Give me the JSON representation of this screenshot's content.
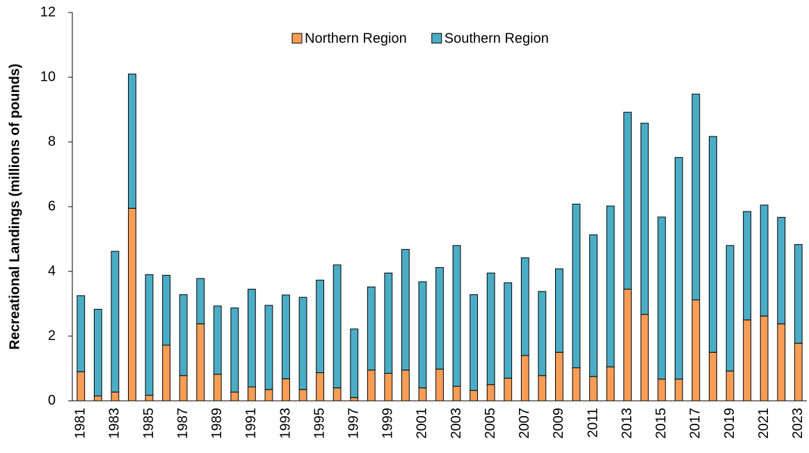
{
  "chart_data": {
    "type": "stacked_bar",
    "y_label": "Recreational Landings (millions of pounds)",
    "categories": [
      "1981",
      null,
      "1983",
      null,
      "1985",
      null,
      "1987",
      null,
      "1989",
      null,
      "1991",
      null,
      "1993",
      null,
      "1995",
      null,
      "1997",
      null,
      "1999",
      null,
      "2001",
      null,
      "2003",
      null,
      "2005",
      null,
      "2007",
      null,
      "2009",
      null,
      "2011",
      null,
      "2013",
      null,
      "2015",
      null,
      "2017",
      null,
      "2019",
      null,
      "2021",
      null,
      "2023"
    ],
    "series": [
      {
        "name": "Northern Region",
        "color": "#f79d56",
        "values": [
          0.9,
          0.15,
          0.27,
          5.95,
          0.17,
          1.72,
          0.78,
          2.38,
          0.82,
          0.27,
          0.43,
          0.35,
          0.68,
          0.35,
          0.87,
          0.4,
          0.1,
          0.95,
          0.85,
          0.95,
          0.4,
          0.98,
          0.45,
          0.32,
          0.5,
          0.7,
          1.4,
          0.78,
          1.5,
          1.02,
          0.75,
          1.05,
          3.45,
          2.67,
          0.67,
          0.67,
          3.12,
          1.5,
          0.92,
          2.5,
          2.62,
          2.38,
          1.78
        ]
      },
      {
        "name": "Southern Region",
        "color": "#4bacc6",
        "values": [
          2.35,
          2.68,
          4.35,
          4.15,
          3.73,
          2.16,
          2.5,
          1.4,
          2.11,
          2.6,
          3.02,
          2.6,
          2.59,
          2.85,
          2.86,
          3.8,
          2.12,
          2.57,
          3.1,
          3.73,
          3.28,
          3.14,
          4.35,
          2.96,
          3.45,
          2.95,
          3.02,
          2.6,
          2.58,
          5.06,
          4.38,
          4.97,
          5.47,
          5.91,
          5.01,
          6.85,
          6.36,
          6.67,
          3.88,
          3.35,
          3.43,
          3.29,
          3.05
        ]
      }
    ],
    "ylim": [
      0,
      12
    ],
    "yticks": [
      0,
      2,
      4,
      6,
      8,
      10,
      12
    ],
    "legend": "top"
  }
}
